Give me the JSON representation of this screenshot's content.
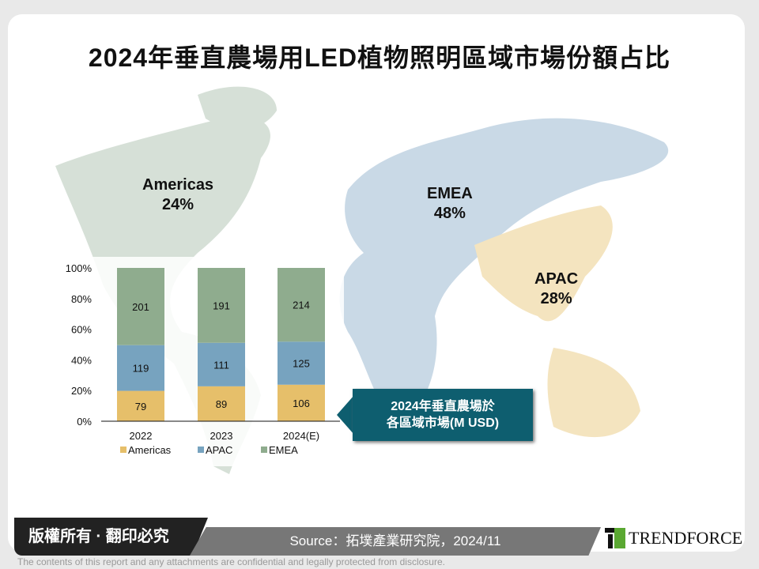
{
  "title": "2024年垂直農場用LED植物照明區域市場份額占比",
  "regions": [
    {
      "name": "Americas",
      "share": "24%",
      "color": "#d6e0d7"
    },
    {
      "name": "EMEA",
      "share": "48%",
      "color": "#c9d9e6"
    },
    {
      "name": "APAC",
      "share": "28%",
      "color": "#f4e4bf"
    }
  ],
  "callout": {
    "line1": "2024年垂直農場於",
    "line2": "各區域市場(M USD)",
    "color": "#0e5e6f"
  },
  "chart_data": {
    "type": "bar",
    "stacked": "percent",
    "categories": [
      "2022",
      "2023",
      "2024(E)"
    ],
    "series": [
      {
        "name": "Americas",
        "values": [
          79,
          89,
          106
        ],
        "color": "#e6bf6a"
      },
      {
        "name": "APAC",
        "values": [
          119,
          111,
          125
        ],
        "color": "#77a3bf"
      },
      {
        "name": "EMEA",
        "values": [
          201,
          191,
          214
        ],
        "color": "#8fac8e"
      }
    ],
    "yticks": [
      "0%",
      "20%",
      "40%",
      "60%",
      "80%",
      "100%"
    ],
    "ylim": [
      0,
      100
    ],
    "legend": "bottom",
    "grid": false
  },
  "footer": {
    "copyright": "版權所有 · 翻印必究",
    "source": "Source：拓墣產業研究院，2024/11",
    "logo": "TRENDFORCE",
    "disclaimer": "The contents of this report and any attachments are confidential and legally protected from disclosure."
  }
}
